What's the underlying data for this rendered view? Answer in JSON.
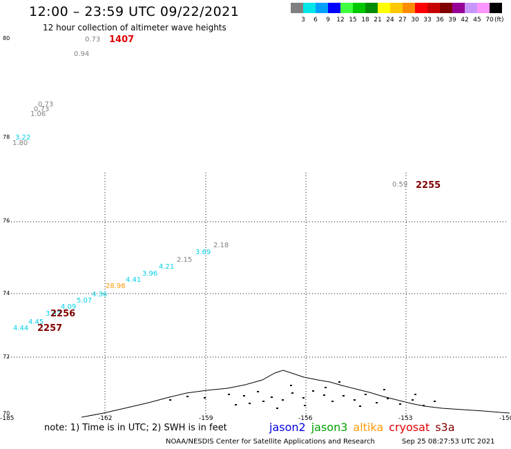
{
  "header": {
    "title": "12:00 – 23:59 UTC 09/22/2021",
    "subtitle": "12 hour collection of altimeter wave heights"
  },
  "scale": {
    "colors": [
      "#808080",
      "#00e6e6",
      "#00a0ff",
      "#0000ff",
      "#40ff40",
      "#00c800",
      "#008c00",
      "#ffff00",
      "#ffc800",
      "#ff8c00",
      "#ff0000",
      "#c80000",
      "#800000",
      "#960096",
      "#c896ff",
      "#ff96ff",
      "#000000"
    ],
    "labels": [
      "3",
      "6",
      "9",
      "12",
      "15",
      "18",
      "21",
      "24",
      "27",
      "30",
      "33",
      "36",
      "39",
      "42",
      "45",
      "70"
    ],
    "unit": "(ft)"
  },
  "axes": {
    "y_labels": [
      "80",
      "78",
      "76",
      "74",
      "72",
      "70"
    ],
    "x_labels": [
      "-185",
      "-162",
      "-159",
      "-156",
      "-153",
      "-150"
    ]
  },
  "observations": [
    {
      "text": "0.73",
      "color": "#808080"
    },
    {
      "text": "0.94",
      "color": "#808080"
    },
    {
      "text": "0.73",
      "color": "#808080"
    },
    {
      "text": "0.73",
      "color": "#808080"
    },
    {
      "text": "1.06",
      "color": "#808080"
    },
    {
      "text": "3.22",
      "color": "#00d0e6"
    },
    {
      "text": "1.80",
      "color": "#808080"
    },
    {
      "text": "0.59",
      "color": "#808080"
    },
    {
      "text": "2.18",
      "color": "#808080"
    },
    {
      "text": "3.69",
      "color": "#00d0e6"
    },
    {
      "text": "2.15",
      "color": "#808080"
    },
    {
      "text": "4.21",
      "color": "#00d0e6"
    },
    {
      "text": "3.96",
      "color": "#00d0e6"
    },
    {
      "text": "4.41",
      "color": "#00d0e6"
    },
    {
      "text": "28.98",
      "color": "#ff9900"
    },
    {
      "text": "4.36",
      "color": "#00d0e6"
    },
    {
      "text": "5.07",
      "color": "#00d0e6"
    },
    {
      "text": "4.09",
      "color": "#00d0e6"
    },
    {
      "text": "3.67",
      "color": "#00d0e6"
    },
    {
      "text": "4.45",
      "color": "#00d0e6"
    },
    {
      "text": "4.44",
      "color": "#00d0e6"
    }
  ],
  "times": [
    {
      "text": "1407",
      "color": "#e00000"
    },
    {
      "text": "2255",
      "color": "#800000"
    },
    {
      "text": "2256",
      "color": "#800000"
    },
    {
      "text": "2257",
      "color": "#800000"
    }
  ],
  "note": "note: 1) Time is in UTC; 2) SWH is in feet",
  "legend": [
    {
      "name": "jason2",
      "color": "#0000e0"
    },
    {
      "name": "jason3",
      "color": "#00a000"
    },
    {
      "name": "altika",
      "color": "#ff9900"
    },
    {
      "name": "cryosat",
      "color": "#e00000"
    },
    {
      "name": "s3a",
      "color": "#800000"
    }
  ],
  "footer": {
    "credit": "NOAA/NESDIS Center for Satellite Applications and Research",
    "timestamp": "Sep 25 08:27:53 UTC 2021"
  }
}
